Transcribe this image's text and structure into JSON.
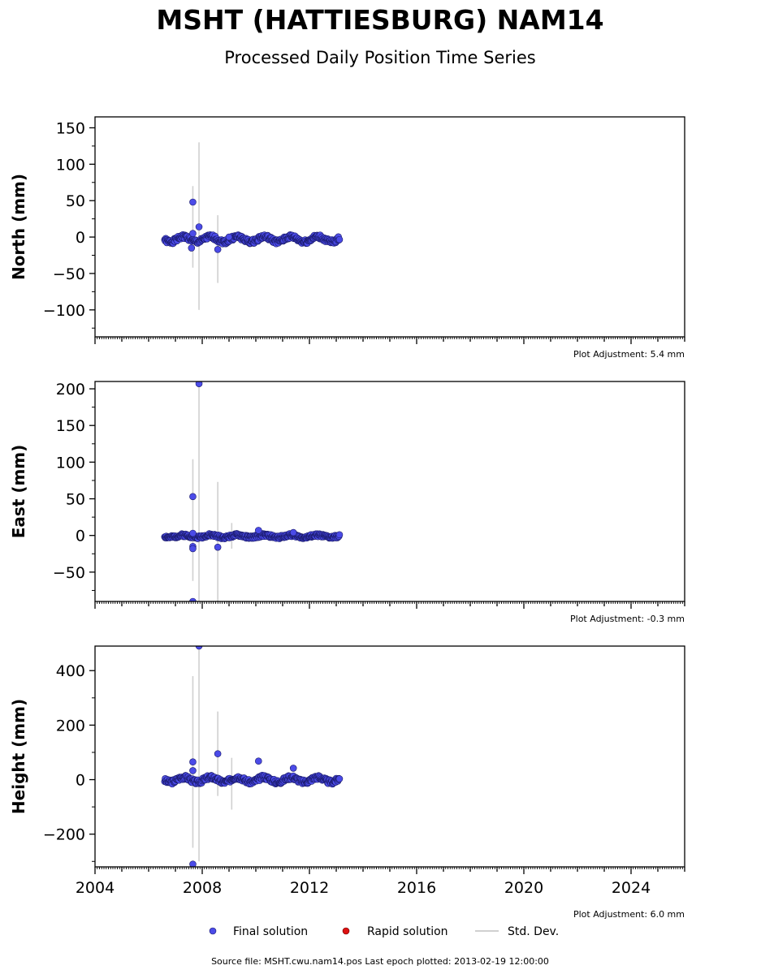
{
  "header": {
    "title": "MSHT (HATTIESBURG) NAM14",
    "subtitle": "Processed Daily Position Time Series"
  },
  "legend": {
    "final_label": "Final solution",
    "rapid_label": "Rapid solution",
    "stddev_label": "Std. Dev.",
    "final_color": "#4b4be8",
    "rapid_color": "#dd1111",
    "stddev_color": "#d0d0d0"
  },
  "footer": {
    "text": "Source file: MSHT.cwu.nam14.pos  Last epoch plotted: 2013-02-19 12:00:00"
  },
  "chart_data": {
    "type": "scatter",
    "x_axis": {
      "xlim": [
        2004,
        2026
      ],
      "major_ticks": [
        2004,
        2008,
        2012,
        2016,
        2020,
        2024
      ],
      "tick_labels": [
        "2004",
        "2008",
        "2012",
        "2016",
        "2020",
        "2024"
      ]
    },
    "panels": [
      {
        "key": "north",
        "ylabel": "North (mm)",
        "ylim": [
          -137,
          165
        ],
        "major_ticks": [
          -100,
          -50,
          0,
          50,
          100,
          150
        ],
        "tick_labels": [
          "−100",
          "−50",
          "0",
          "50",
          "100",
          "150"
        ],
        "minor_step": 25,
        "adjustment": "Plot Adjustment: 5.4 mm",
        "outliers": [
          [
            2007.65,
            48
          ],
          [
            2007.65,
            5
          ],
          [
            2007.6,
            -15
          ],
          [
            2007.88,
            14
          ],
          [
            2008.58,
            -17
          ],
          [
            2009.0,
            0
          ]
        ],
        "errorbars": [
          [
            2007.65,
            -42,
            70
          ],
          [
            2007.88,
            -100,
            130
          ],
          [
            2008.58,
            -63,
            30
          ]
        ],
        "series_seed": 1,
        "base": -3,
        "noise": 3.0,
        "wobble": 3.5
      },
      {
        "key": "east",
        "ylabel": "East (mm)",
        "ylim": [
          -90,
          210
        ],
        "major_ticks": [
          -50,
          0,
          50,
          100,
          150,
          200
        ],
        "tick_labels": [
          "−50",
          "0",
          "50",
          "100",
          "150",
          "200"
        ],
        "minor_step": 25,
        "adjustment": "Plot Adjustment: -0.3 mm",
        "outliers": [
          [
            2007.65,
            53
          ],
          [
            2007.88,
            207
          ],
          [
            2007.65,
            -90
          ],
          [
            2007.65,
            -15
          ],
          [
            2007.65,
            -18
          ],
          [
            2007.65,
            3
          ],
          [
            2008.58,
            -16
          ],
          [
            2010.1,
            7
          ],
          [
            2011.4,
            4
          ]
        ],
        "errorbars": [
          [
            2007.65,
            -62,
            104
          ],
          [
            2007.88,
            -90,
            207
          ],
          [
            2008.58,
            -90,
            73
          ],
          [
            2009.1,
            -18,
            17
          ]
        ],
        "series_seed": 2,
        "base": -1,
        "noise": 2.0,
        "wobble": 1.5
      },
      {
        "key": "height",
        "ylabel": "Height (mm)",
        "ylim": [
          -320,
          490
        ],
        "major_ticks": [
          -200,
          0,
          200,
          400
        ],
        "tick_labels": [
          "−200",
          "0",
          "200",
          "400"
        ],
        "minor_step": 100,
        "adjustment": "Plot Adjustment: 6.0 mm",
        "outliers": [
          [
            2007.65,
            65
          ],
          [
            2007.65,
            33
          ],
          [
            2007.88,
            490
          ],
          [
            2007.65,
            -310
          ],
          [
            2008.58,
            95
          ],
          [
            2010.1,
            68
          ],
          [
            2011.4,
            42
          ]
        ],
        "errorbars": [
          [
            2007.65,
            -250,
            380
          ],
          [
            2007.88,
            -300,
            490
          ],
          [
            2008.58,
            -60,
            250
          ],
          [
            2009.1,
            -110,
            80
          ]
        ],
        "series_seed": 3,
        "base": 0,
        "noise": 8.0,
        "wobble": 9.0
      }
    ],
    "series_time_range": [
      2006.6,
      2013.13
    ],
    "series_step": 0.02
  }
}
